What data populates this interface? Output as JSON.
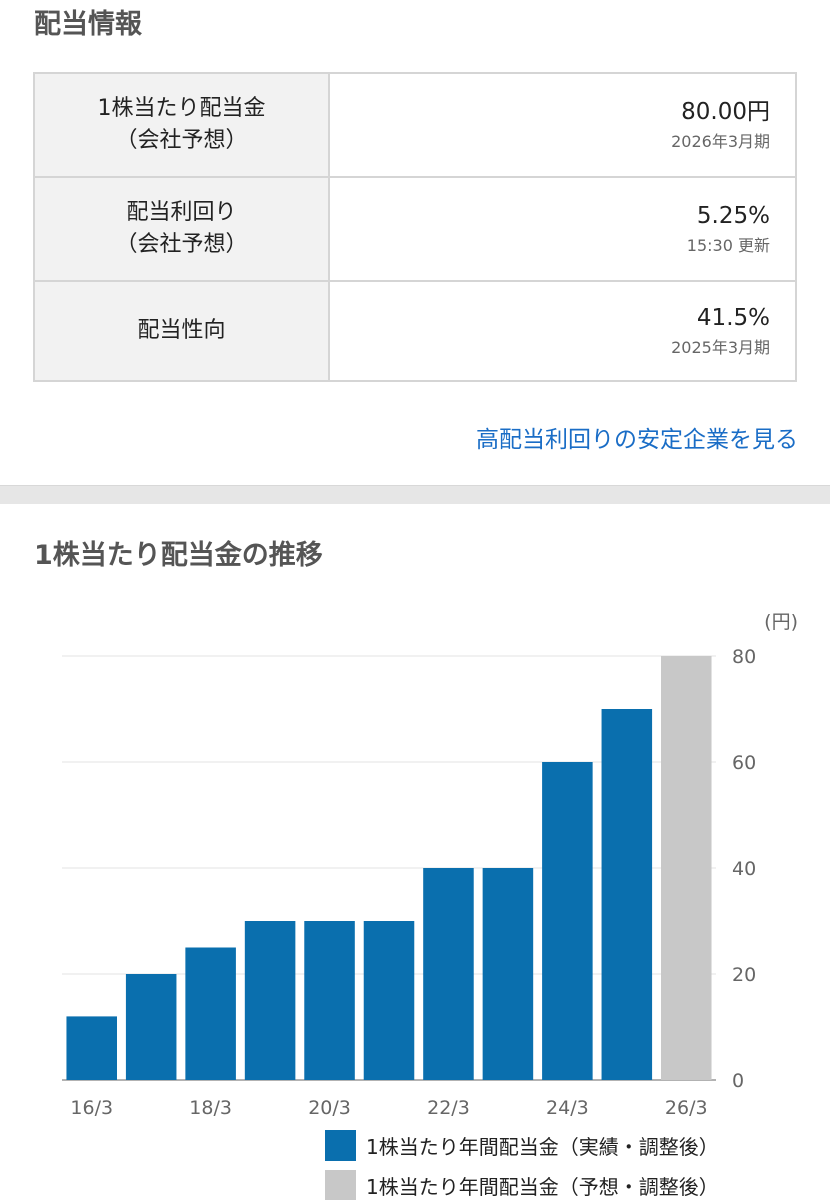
{
  "section_title": "配当情報",
  "rows": [
    {
      "label_1": "1株当たり配当金",
      "label_2": "（会社予想）",
      "value": "80.00円",
      "sub": "2026年3月期"
    },
    {
      "label_1": "配当利回り",
      "label_2": "（会社予想）",
      "value": "5.25%",
      "sub": "15:30 更新"
    },
    {
      "label_1": "配当性向",
      "label_2": "",
      "value": "41.5%",
      "sub": "2025年3月期"
    }
  ],
  "link_text": "高配当利回りの安定企業を見る",
  "chart_title": "1株当たり配当金の推移",
  "colors": {
    "actual": "#0a6fae",
    "forecast": "#c8c8c8",
    "link": "#1a6dc6"
  },
  "chart_data": {
    "type": "bar",
    "title": "1株当たり配当金の推移",
    "unit_label": "(円)",
    "categories": [
      "16/3",
      "17/3",
      "18/3",
      "19/3",
      "20/3",
      "21/3",
      "22/3",
      "23/3",
      "24/3",
      "25/3",
      "26/3"
    ],
    "x_tick_labels": [
      "16/3",
      "18/3",
      "20/3",
      "22/3",
      "24/3",
      "26/3"
    ],
    "series": [
      {
        "name": "1株当たり年間配当金（実績・調整後）",
        "values": [
          12,
          20,
          25,
          30,
          30,
          30,
          40,
          40,
          60,
          70,
          null
        ]
      },
      {
        "name": "1株当たり年間配当金（予想・調整後）",
        "values": [
          null,
          null,
          null,
          null,
          null,
          null,
          null,
          null,
          null,
          null,
          80
        ]
      }
    ],
    "y_ticks": [
      0,
      20,
      40,
      60,
      80
    ],
    "ylim": [
      0,
      80
    ],
    "grid": true,
    "y_axis_position": "right",
    "legend_position": "bottom-right"
  }
}
